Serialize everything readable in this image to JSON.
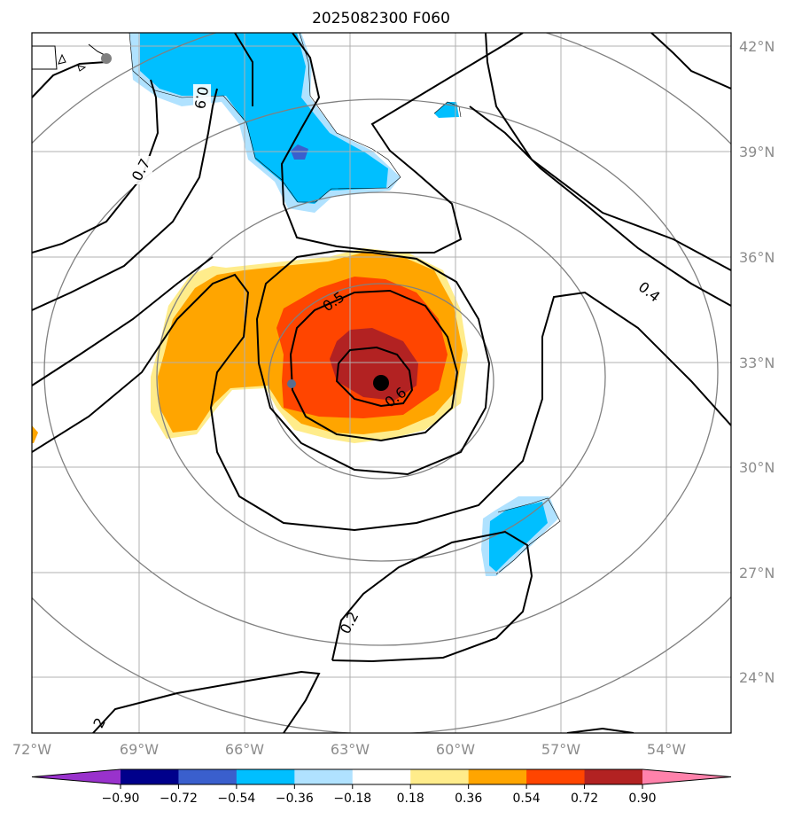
{
  "chart_data": {
    "type": "contour-map",
    "title": "2025082300 F060",
    "lon_ticks": [
      "72°W",
      "69°W",
      "66°W",
      "63°W",
      "60°W",
      "57°W",
      "54°W"
    ],
    "lat_ticks": [
      "42°N",
      "39°N",
      "36°N",
      "33°N",
      "30°N",
      "27°N",
      "24°N"
    ],
    "lon_range": [
      -72,
      -52
    ],
    "lat_range": [
      22.5,
      42.5
    ],
    "grid": true,
    "colorbar": {
      "position": "bottom",
      "extend": "both",
      "ticks": [
        "−0.90",
        "−0.72",
        "−0.54",
        "−0.36",
        "−0.18",
        "0.18",
        "0.36",
        "0.54",
        "0.72",
        "0.90"
      ],
      "levels": [
        -0.9,
        -0.72,
        -0.54,
        -0.36,
        -0.18,
        0.18,
        0.36,
        0.54,
        0.72,
        0.9
      ],
      "colors": [
        "#9932cc",
        "#00008b",
        "#3a5fcd",
        "#00bfff",
        "#b0e2ff",
        "#ffffff",
        "#ffec8b",
        "#ffa500",
        "#ff4500",
        "#b22222",
        "#ff82ab"
      ]
    },
    "contour_labels": [
      "0.9",
      "0.7",
      "0.5",
      "0.6",
      "0.4",
      "0.2",
      "2"
    ],
    "center_marker": {
      "lon": -62.2,
      "lat": 32.9
    },
    "range_rings": true
  }
}
